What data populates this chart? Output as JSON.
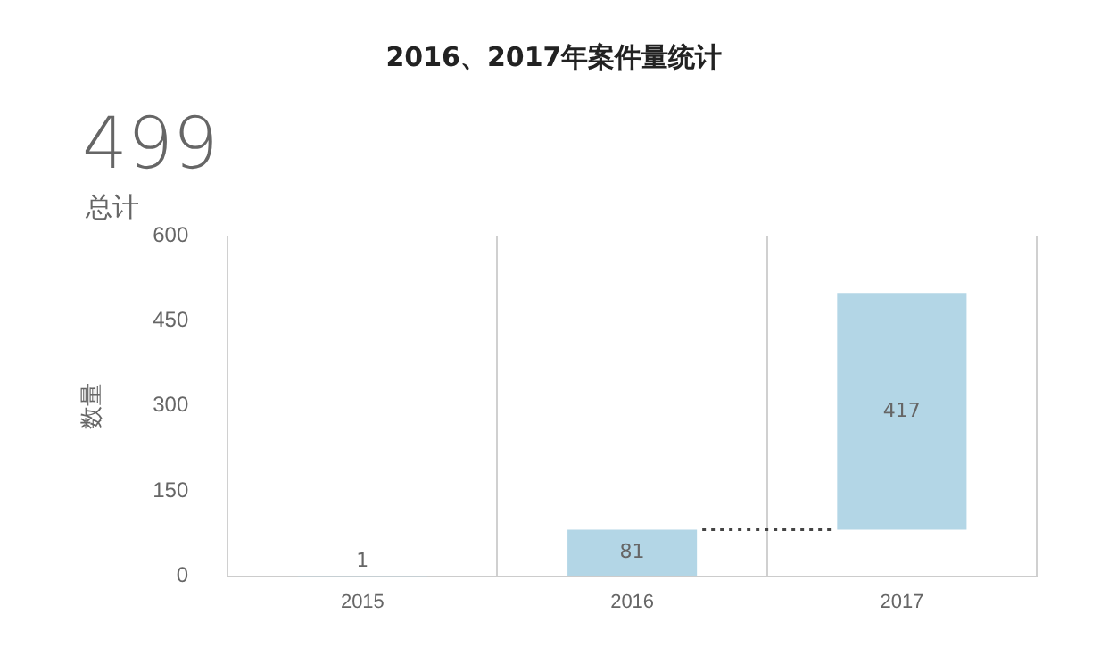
{
  "chart_data": {
    "type": "bar",
    "title": "2016、2017年案件量统计",
    "ylabel": "数量",
    "categories": [
      "2015",
      "2016",
      "2017"
    ],
    "values": [
      1,
      81,
      417
    ],
    "base": [
      0,
      1,
      82
    ],
    "color": "#b3d6e6",
    "ylim": [
      0,
      600
    ],
    "yticks": [
      0,
      150,
      300,
      450,
      600
    ],
    "ref_lines": [
      {
        "axis": "y",
        "value": 82,
        "line_style": "dotted",
        "color": "#444444"
      }
    ],
    "grid": "x",
    "legend": false,
    "data_labels": true,
    "annotations": [
      "499",
      "总计"
    ]
  }
}
